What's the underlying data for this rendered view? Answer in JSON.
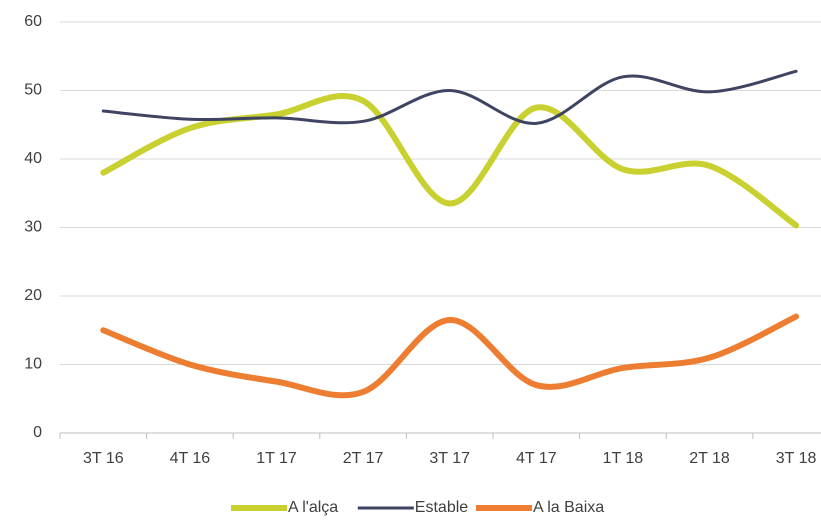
{
  "chart_data": {
    "type": "line",
    "categories": [
      "3T 16",
      "4T 16",
      "1T 17",
      "2T 17",
      "3T 17",
      "4T 17",
      "1T 18",
      "2T 18",
      "3T 18"
    ],
    "series": [
      {
        "name": "A l'alça",
        "color": "#c8d12f",
        "values": [
          38,
          44.5,
          46.5,
          48.5,
          33.5,
          47.5,
          38.5,
          39,
          30.3
        ]
      },
      {
        "name": "Estable",
        "color": "#3e4462",
        "values": [
          47,
          45.8,
          46,
          45.5,
          50,
          45.2,
          52,
          49.8,
          52.8
        ]
      },
      {
        "name": "A la Baixa",
        "color": "#ed7d31",
        "values": [
          15,
          10,
          7.5,
          6,
          16.5,
          7,
          9.5,
          11,
          17
        ]
      }
    ],
    "ylim": [
      0,
      60
    ],
    "yticks": [
      0,
      10,
      20,
      30,
      40,
      50,
      60
    ],
    "grid": true,
    "legend": "bottom"
  }
}
